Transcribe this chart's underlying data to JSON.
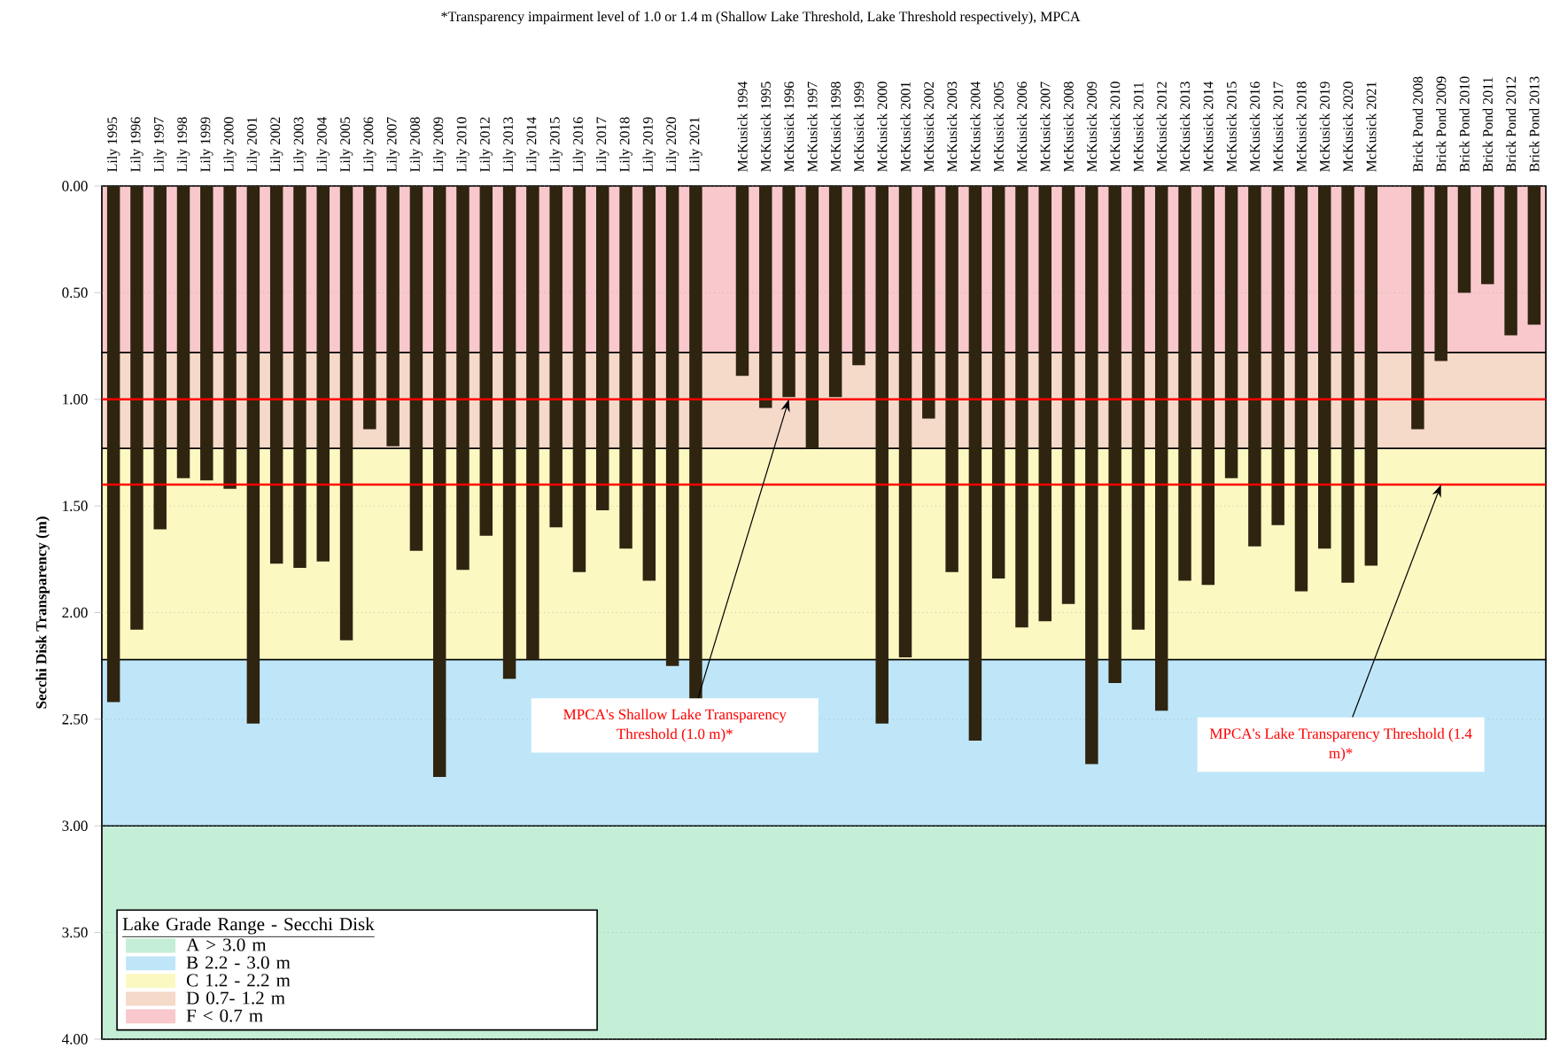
{
  "chart_data": {
    "type": "bar",
    "ylabel": "Secchi Disk Transparency (m)",
    "annotations": [
      "*Transparency impairment level of 1.0 or 1.4 m (Shallow Lake Threshold, Lake Threshold respectively), MPCA",
      {
        "text": "MPCA's Shallow Lake Transparency Threshold (1.0 m)*",
        "x": "McKusick 1996",
        "y": 1.0
      },
      {
        "text": "MPCA's Lake Transparency Threshold (1.4 m)*",
        "x": "Brick Pond 2009",
        "y": 1.4
      }
    ],
    "categories": [
      "Lily 1995",
      "Lily 1996",
      "Lily 1997",
      "Lily 1998",
      "Lily 1999",
      "Lily 2000",
      "Lily 2001",
      "Lily 2002",
      "Lily 2003",
      "Lily 2004",
      "Lily 2005",
      "Lily 2006",
      "Lily 2007",
      "Lily 2008",
      "Lily 2009",
      "Lily 2010",
      "Lily 2012",
      "Lily 2013",
      "Lily 2014",
      "Lily 2015",
      "Lily 2016",
      "Lily 2017",
      "Lily 2018",
      "Lily 2019",
      "Lily 2020",
      "Lily 2021",
      null,
      "McKusick 1994",
      "McKusick 1995",
      "McKusick 1996",
      "McKusick 1997",
      "McKusick 1998",
      "McKusick 1999",
      "McKusick 2000",
      "McKusick 2001",
      "McKusick 2002",
      "McKusick 2003",
      "McKusick 2004",
      "McKusick 2005",
      "McKusick 2006",
      "McKusick 2007",
      "McKusick 2008",
      "McKusick 2009",
      "McKusick 2010",
      "McKusick 2011",
      "McKusick 2012",
      "McKusick 2013",
      "McKusick 2014",
      "McKusick 2015",
      "McKusick 2016",
      "McKusick 2017",
      "McKusick 2018",
      "McKusick 2019",
      "McKusick 2020",
      "McKusick 2021",
      null,
      "Brick Pond 2008",
      "Brick Pond 2009",
      "Brick Pond 2010",
      "Brick Pond 2011",
      "Brick Pond 2012",
      "Brick Pond 2013"
    ],
    "values": [
      2.42,
      2.08,
      1.61,
      1.37,
      1.38,
      1.42,
      2.52,
      1.77,
      1.79,
      1.76,
      2.13,
      1.14,
      1.22,
      1.71,
      2.77,
      1.8,
      1.64,
      2.31,
      2.22,
      1.6,
      1.81,
      1.52,
      1.7,
      1.85,
      2.25,
      2.41,
      null,
      0.89,
      1.04,
      0.99,
      1.23,
      0.99,
      0.84,
      2.52,
      2.21,
      1.09,
      1.81,
      2.6,
      1.84,
      2.07,
      2.04,
      1.96,
      2.71,
      2.33,
      2.08,
      2.46,
      1.85,
      1.87,
      1.37,
      1.69,
      1.59,
      1.9,
      1.7,
      1.86,
      1.78,
      null,
      1.14,
      0.82,
      0.5,
      0.46,
      0.7,
      0.65
    ],
    "color": "#2e2410",
    "ylim": [
      4,
      0
    ],
    "yticks": [
      {
        "value": 0,
        "label": "0.00"
      },
      {
        "value": 0.5,
        "label": "0.50"
      },
      {
        "value": 1,
        "label": "1.00"
      },
      {
        "value": 1.5,
        "label": "1.50"
      },
      {
        "value": 2,
        "label": "2.00"
      },
      {
        "value": 2.5,
        "label": "2.50"
      },
      {
        "value": 3,
        "label": "3.00"
      },
      {
        "value": 3.5,
        "label": "3.50"
      },
      {
        "value": 4,
        "label": "4.00"
      }
    ],
    "bands": [
      {
        "axis": "y",
        "from": 3.0,
        "to": 4.0,
        "label": "A  > 3.0 m",
        "color": "#c4eed6"
      },
      {
        "axis": "y",
        "from": 2.22,
        "to": 3.0,
        "label": "B  2.2 - 3.0 m",
        "color": "#bee6f8"
      },
      {
        "axis": "y",
        "from": 1.23,
        "to": 2.22,
        "label": "C  1.2 - 2.2 m",
        "color": "#fcf8c2"
      },
      {
        "axis": "y",
        "from": 0.78,
        "to": 1.23,
        "label": "D  0.7- 1.2 m",
        "color": "#f5d9c9"
      },
      {
        "axis": "y",
        "from": 0,
        "to": 0.78,
        "label": "F  < 0.7 m",
        "color": "#f8c8cc"
      }
    ],
    "legend_title": "Lake Grade Range - Secchi Disk",
    "ref_lines": [
      {
        "axis": "y",
        "value": 1.0,
        "color": "#ff0000"
      },
      {
        "axis": "y",
        "value": 1.4,
        "color": "#ff0000"
      }
    ],
    "grid": "y",
    "legend": "bottom left"
  }
}
